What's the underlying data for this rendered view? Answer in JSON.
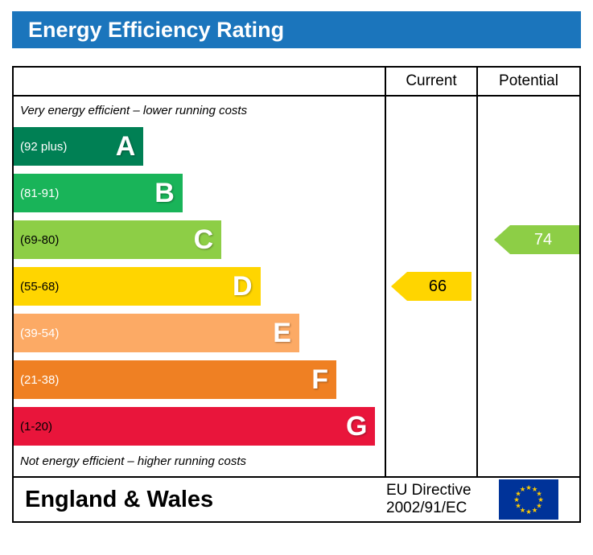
{
  "header": {
    "title": "Energy Efficiency Rating",
    "bg_color": "#1b75bc",
    "text_color": "#ffffff"
  },
  "columns": {
    "current": "Current",
    "potential": "Potential"
  },
  "notes": {
    "top": "Very energy efficient – lower running costs",
    "bottom": "Not energy efficient – higher running costs"
  },
  "bands": [
    {
      "letter": "A",
      "range": "(92 plus)",
      "color": "#008054",
      "range_text_color": "#ffffff",
      "width_pct": 35
    },
    {
      "letter": "B",
      "range": "(81-91)",
      "color": "#19b459",
      "range_text_color": "#ffffff",
      "width_pct": 45.5
    },
    {
      "letter": "C",
      "range": "(69-80)",
      "color": "#8dce46",
      "range_text_color": "#000000",
      "width_pct": 56
    },
    {
      "letter": "D",
      "range": "(55-68)",
      "color": "#ffd500",
      "range_text_color": "#000000",
      "width_pct": 66.5
    },
    {
      "letter": "E",
      "range": "(39-54)",
      "color": "#fcaa65",
      "range_text_color": "#ffffff",
      "width_pct": 77
    },
    {
      "letter": "F",
      "range": "(21-38)",
      "color": "#ef8023",
      "range_text_color": "#ffffff",
      "width_pct": 87
    },
    {
      "letter": "G",
      "range": "(1-20)",
      "color": "#e9153b",
      "range_text_color": "#000000",
      "width_pct": 97.5
    }
  ],
  "current": {
    "value": "66",
    "color": "#ffd500",
    "text_color": "#000000",
    "band_index": 3
  },
  "potential": {
    "value": "74",
    "color": "#8dce46",
    "text_color": "#ffffff",
    "band_index": 2
  },
  "footer": {
    "region": "England & Wales",
    "directive_line1": "EU Directive",
    "directive_line2": "2002/91/EC",
    "flag_icon": "eu-flag",
    "flag_colors": {
      "field": "#003399",
      "stars": "#ffcc00"
    }
  },
  "chart_data": {
    "type": "bar",
    "title": "Energy Efficiency Rating",
    "bands": [
      {
        "letter": "A",
        "range": "92 plus"
      },
      {
        "letter": "B",
        "range": "81-91"
      },
      {
        "letter": "C",
        "range": "69-80"
      },
      {
        "letter": "D",
        "range": "55-68"
      },
      {
        "letter": "E",
        "range": "39-54"
      },
      {
        "letter": "F",
        "range": "21-38"
      },
      {
        "letter": "G",
        "range": "1-20"
      }
    ],
    "series": [
      {
        "name": "Current",
        "value": 66,
        "band": "D"
      },
      {
        "name": "Potential",
        "value": 74,
        "band": "C"
      }
    ],
    "top_note": "Very energy efficient – lower running costs",
    "bottom_note": "Not energy efficient – higher running costs",
    "region": "England & Wales",
    "directive": "EU Directive 2002/91/EC"
  }
}
